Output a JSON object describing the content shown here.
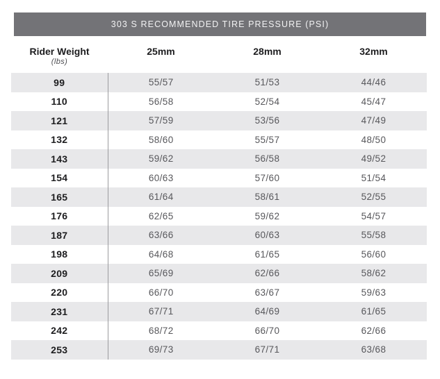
{
  "chart_data": {
    "type": "table",
    "title": "303 S RECOMMENDED TIRE PRESSURE (PSI)",
    "columns": [
      {
        "label": "Rider Weight",
        "sublabel": "(lbs)"
      },
      {
        "label": "25mm",
        "sublabel": ""
      },
      {
        "label": "28mm",
        "sublabel": ""
      },
      {
        "label": "32mm",
        "sublabel": ""
      }
    ],
    "rows": [
      {
        "weight": "99",
        "pressures": [
          "55/57",
          "51/53",
          "44/46"
        ]
      },
      {
        "weight": "110",
        "pressures": [
          "56/58",
          "52/54",
          "45/47"
        ]
      },
      {
        "weight": "121",
        "pressures": [
          "57/59",
          "53/56",
          "47/49"
        ]
      },
      {
        "weight": "132",
        "pressures": [
          "58/60",
          "55/57",
          "48/50"
        ]
      },
      {
        "weight": "143",
        "pressures": [
          "59/62",
          "56/58",
          "49/52"
        ]
      },
      {
        "weight": "154",
        "pressures": [
          "60/63",
          "57/60",
          "51/54"
        ]
      },
      {
        "weight": "165",
        "pressures": [
          "61/64",
          "58/61",
          "52/55"
        ]
      },
      {
        "weight": "176",
        "pressures": [
          "62/65",
          "59/62",
          "54/57"
        ]
      },
      {
        "weight": "187",
        "pressures": [
          "63/66",
          "60/63",
          "55/58"
        ]
      },
      {
        "weight": "198",
        "pressures": [
          "64/68",
          "61/65",
          "56/60"
        ]
      },
      {
        "weight": "209",
        "pressures": [
          "65/69",
          "62/66",
          "58/62"
        ]
      },
      {
        "weight": "220",
        "pressures": [
          "66/70",
          "63/67",
          "59/63"
        ]
      },
      {
        "weight": "231",
        "pressures": [
          "67/71",
          "64/69",
          "61/65"
        ]
      },
      {
        "weight": "242",
        "pressures": [
          "68/72",
          "66/70",
          "62/66"
        ]
      },
      {
        "weight": "253",
        "pressures": [
          "69/73",
          "67/71",
          "63/68"
        ]
      }
    ],
    "layout_hints": {
      "shaded_rows": "odd rows starting with first (99)",
      "divider": "vertical line between weight column and pressure columns"
    }
  },
  "colors": {
    "header_bar": "#737377",
    "header_bar_text": "#f2f2f3",
    "row_shade": "#e8e8ea",
    "weight_text": "#1d1d1f",
    "value_text": "#57575b",
    "divider": "#9b9b9e"
  }
}
